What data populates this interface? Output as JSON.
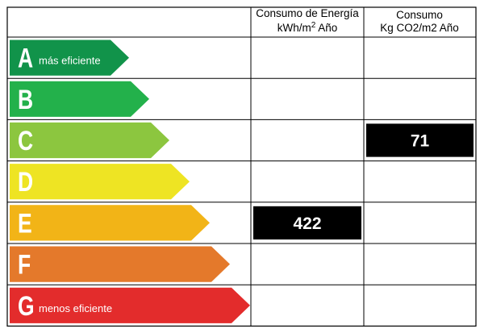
{
  "chart_data": {
    "type": "table",
    "columns": [
      {
        "line1": "Consumo de Energía",
        "line2_main": "kWh/m",
        "line2_sup": "2",
        "line2_rest": " Año"
      },
      {
        "line1": "Consumo",
        "line2_main": "Kg CO2/m2 Año",
        "line2_sup": "",
        "line2_rest": ""
      }
    ],
    "classes": [
      {
        "letter": "A",
        "note": "más eficiente",
        "color": "#11934a"
      },
      {
        "letter": "B",
        "note": "",
        "color": "#23b14b"
      },
      {
        "letter": "C",
        "note": "",
        "color": "#8cc63f"
      },
      {
        "letter": "D",
        "note": "",
        "color": "#eee423"
      },
      {
        "letter": "E",
        "note": "",
        "color": "#f2b417"
      },
      {
        "letter": "F",
        "note": "",
        "color": "#e4792b"
      },
      {
        "letter": "G",
        "note": "menos eficiente",
        "color": "#e32c2c"
      }
    ],
    "ratings": [
      {
        "column": 0,
        "class": "E",
        "value": "422"
      },
      {
        "column": 1,
        "class": "C",
        "value": "71"
      }
    ]
  }
}
